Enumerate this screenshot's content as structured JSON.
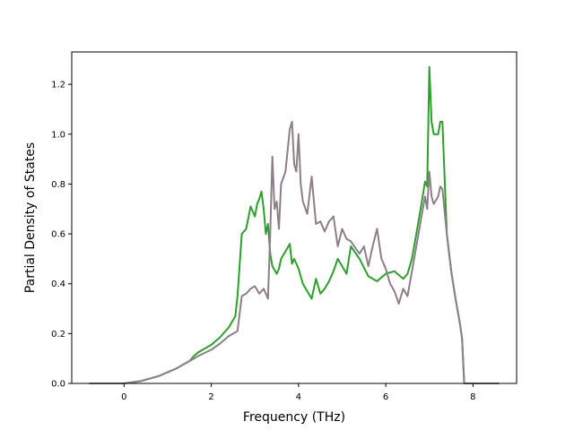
{
  "chart_data": {
    "type": "line",
    "title": "",
    "xlabel": "Frequency (THz)",
    "ylabel": "Partial Density of States",
    "xlim": [
      -1.2,
      9.0
    ],
    "ylim": [
      0,
      1.33
    ],
    "xticks": [
      0,
      2,
      4,
      6,
      8
    ],
    "yticks": [
      0.0,
      0.2,
      0.4,
      0.6,
      0.8,
      1.0,
      1.2
    ],
    "xtick_labels": [
      "0",
      "2",
      "4",
      "6",
      "8"
    ],
    "ytick_labels": [
      "0.0",
      "0.2",
      "0.4",
      "0.6",
      "0.8",
      "1.0",
      "1.2"
    ],
    "grid": false,
    "legend": "none",
    "series": [
      {
        "color": "#2ca02c",
        "x": [
          -0.8,
          0.0,
          0.4,
          0.8,
          1.2,
          1.5,
          1.6,
          1.7,
          2.0,
          2.2,
          2.4,
          2.55,
          2.6,
          2.7,
          2.8,
          2.9,
          3.0,
          3.05,
          3.1,
          3.15,
          3.2,
          3.25,
          3.3,
          3.35,
          3.4,
          3.5,
          3.55,
          3.6,
          3.7,
          3.8,
          3.85,
          3.9,
          4.0,
          4.1,
          4.2,
          4.3,
          4.4,
          4.5,
          4.6,
          4.7,
          4.8,
          4.9,
          5.0,
          5.1,
          5.2,
          5.4,
          5.6,
          5.8,
          6.0,
          6.2,
          6.4,
          6.5,
          6.6,
          6.7,
          6.8,
          6.9,
          6.95,
          7.0,
          7.05,
          7.1,
          7.2,
          7.25,
          7.3,
          7.4,
          7.5,
          7.6,
          7.7,
          7.75,
          7.8,
          8.0,
          8.6
        ],
        "y": [
          0.0,
          0.0,
          0.01,
          0.03,
          0.06,
          0.09,
          0.11,
          0.125,
          0.155,
          0.185,
          0.225,
          0.27,
          0.35,
          0.6,
          0.62,
          0.71,
          0.67,
          0.72,
          0.74,
          0.77,
          0.7,
          0.6,
          0.64,
          0.52,
          0.47,
          0.44,
          0.46,
          0.5,
          0.53,
          0.56,
          0.48,
          0.5,
          0.46,
          0.4,
          0.37,
          0.34,
          0.42,
          0.36,
          0.38,
          0.41,
          0.45,
          0.5,
          0.47,
          0.44,
          0.55,
          0.5,
          0.43,
          0.41,
          0.44,
          0.45,
          0.42,
          0.44,
          0.5,
          0.6,
          0.7,
          0.81,
          0.79,
          1.27,
          1.05,
          1.0,
          1.0,
          1.05,
          1.05,
          0.6,
          0.45,
          0.34,
          0.24,
          0.18,
          0.0,
          0.0,
          0.0
        ]
      },
      {
        "color": "#8c7f87",
        "x": [
          -0.8,
          0.0,
          0.4,
          0.8,
          1.2,
          1.5,
          1.6,
          1.7,
          2.0,
          2.2,
          2.4,
          2.6,
          2.7,
          2.8,
          2.9,
          3.0,
          3.1,
          3.2,
          3.3,
          3.35,
          3.4,
          3.45,
          3.5,
          3.55,
          3.6,
          3.7,
          3.8,
          3.85,
          3.9,
          3.95,
          4.0,
          4.05,
          4.1,
          4.2,
          4.3,
          4.4,
          4.5,
          4.6,
          4.7,
          4.8,
          4.9,
          5.0,
          5.1,
          5.2,
          5.4,
          5.5,
          5.6,
          5.7,
          5.8,
          5.9,
          6.0,
          6.1,
          6.2,
          6.3,
          6.4,
          6.5,
          6.6,
          6.7,
          6.8,
          6.9,
          6.95,
          7.0,
          7.05,
          7.1,
          7.2,
          7.25,
          7.3,
          7.4,
          7.5,
          7.6,
          7.7,
          7.75,
          7.8,
          8.0,
          8.6
        ],
        "y": [
          0.0,
          0.0,
          0.01,
          0.03,
          0.06,
          0.09,
          0.1,
          0.11,
          0.135,
          0.16,
          0.19,
          0.21,
          0.35,
          0.36,
          0.38,
          0.39,
          0.36,
          0.38,
          0.34,
          0.6,
          0.91,
          0.7,
          0.73,
          0.62,
          0.8,
          0.85,
          1.02,
          1.05,
          0.88,
          0.85,
          1.0,
          0.8,
          0.73,
          0.68,
          0.83,
          0.64,
          0.65,
          0.61,
          0.65,
          0.67,
          0.55,
          0.62,
          0.58,
          0.57,
          0.52,
          0.55,
          0.47,
          0.55,
          0.62,
          0.5,
          0.46,
          0.4,
          0.37,
          0.32,
          0.38,
          0.35,
          0.45,
          0.55,
          0.65,
          0.75,
          0.7,
          0.85,
          0.75,
          0.72,
          0.75,
          0.79,
          0.78,
          0.6,
          0.45,
          0.34,
          0.24,
          0.18,
          0.0,
          0.0,
          0.0
        ]
      }
    ]
  }
}
